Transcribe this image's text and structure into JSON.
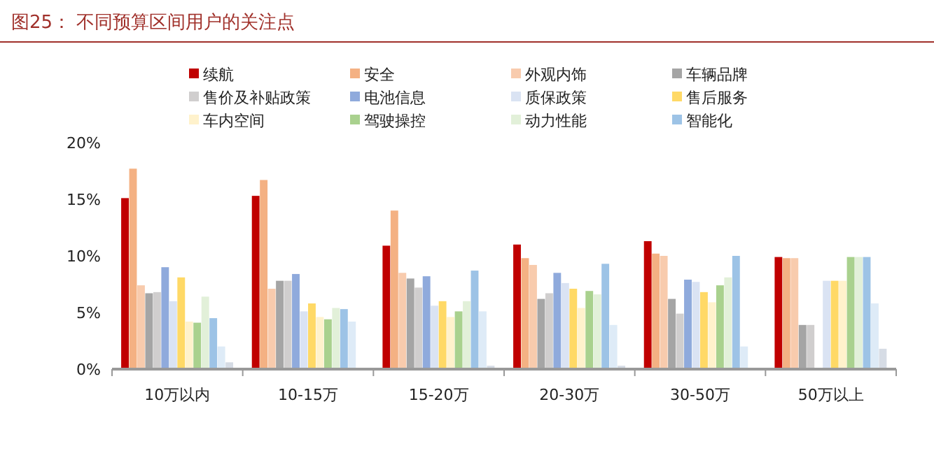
{
  "chart_data": {
    "type": "bar",
    "title": "图25：  不同预算区间用户的关注点",
    "categories": [
      "10万以内",
      "10-15万",
      "15-20万",
      "20-30万",
      "30-50万",
      "50万以上"
    ],
    "ylim": [
      0,
      20
    ],
    "yticks": [
      {
        "value": 0,
        "label": "0%"
      },
      {
        "value": 5,
        "label": "5%"
      },
      {
        "value": 10,
        "label": "10%"
      },
      {
        "value": 15,
        "label": "15%"
      },
      {
        "value": 20,
        "label": "20%"
      }
    ],
    "grid": false,
    "legend": "top",
    "series": [
      {
        "name": "续航",
        "color": "#c00000",
        "values": [
          15.1,
          15.3,
          10.9,
          11.0,
          11.3,
          9.9
        ]
      },
      {
        "name": "安全",
        "color": "#f4b183",
        "values": [
          17.7,
          16.7,
          14.0,
          9.8,
          10.2,
          9.8
        ]
      },
      {
        "name": "外观内饰",
        "color": "#f8cbad",
        "values": [
          7.4,
          7.1,
          8.5,
          9.2,
          10.0,
          9.8
        ]
      },
      {
        "name": "车辆品牌",
        "color": "#a5a5a5",
        "values": [
          6.7,
          7.8,
          8.0,
          6.2,
          6.2,
          3.9
        ]
      },
      {
        "name": "售价及补贴政策",
        "color": "#d0cece",
        "values": [
          6.8,
          7.8,
          7.2,
          6.7,
          4.9,
          3.9
        ]
      },
      {
        "name": "电池信息",
        "color": "#8faadc",
        "values": [
          9.0,
          8.4,
          8.2,
          8.5,
          7.9,
          null
        ]
      },
      {
        "name": "质保政策",
        "color": "#dae3f3",
        "values": [
          6.0,
          5.1,
          5.6,
          7.6,
          7.7,
          7.8
        ]
      },
      {
        "name": "售后服务",
        "color": "#ffd966",
        "values": [
          8.1,
          5.8,
          6.0,
          7.1,
          6.8,
          7.8
        ]
      },
      {
        "name": "车内空间",
        "color": "#fff2cc",
        "values": [
          4.2,
          4.6,
          4.6,
          5.4,
          5.9,
          7.8
        ]
      },
      {
        "name": "驾驶操控",
        "color": "#a9d18e",
        "values": [
          4.1,
          4.4,
          5.1,
          6.9,
          7.4,
          9.9
        ]
      },
      {
        "name": "动力性能",
        "color": "#e2f0d9",
        "values": [
          6.4,
          5.4,
          6.0,
          6.6,
          8.1,
          9.9
        ]
      },
      {
        "name": "智能化",
        "color": "#9dc3e6",
        "values": [
          4.5,
          5.3,
          8.7,
          9.3,
          10.0,
          9.9
        ]
      },
      {
        "color": "#deebf7",
        "values": [
          2.0,
          4.2,
          5.1,
          3.9,
          2.0,
          5.8
        ]
      },
      {
        "color": "#d6dce5",
        "values": [
          0.6,
          null,
          0.3,
          0.3,
          null,
          1.8
        ]
      }
    ]
  }
}
